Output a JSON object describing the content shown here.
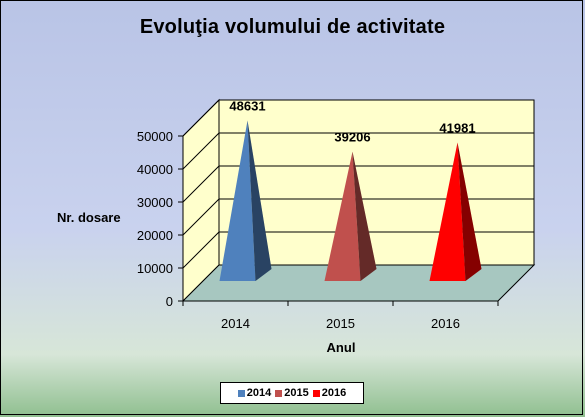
{
  "chart_data": {
    "type": "bar",
    "style": "3d-pyramid",
    "title": "Evoluţia volumului de activitate",
    "xlabel": "Anul",
    "ylabel": "Nr. dosare",
    "categories": [
      "2014",
      "2015",
      "2016"
    ],
    "values": [
      48631,
      39206,
      41981
    ],
    "data_labels": [
      "48631",
      "39206",
      "41981"
    ],
    "ylim": [
      0,
      50000
    ],
    "yticks": [
      0,
      10000,
      20000,
      30000,
      40000,
      50000
    ],
    "ytick_labels": [
      "0",
      "10000",
      "20000",
      "30000",
      "40000",
      "50000"
    ],
    "grid": true,
    "legend_position": "bottom",
    "series": [
      {
        "name": "2014",
        "color": "#4f81bd"
      },
      {
        "name": "2015",
        "color": "#c0504d"
      },
      {
        "name": "2016",
        "color": "#ff0000"
      }
    ],
    "colors": {
      "back_wall": "#ffffcc",
      "side_wall": "#ffffcc",
      "floor": "#a7c7c0",
      "wall_outline": "#000000"
    }
  }
}
